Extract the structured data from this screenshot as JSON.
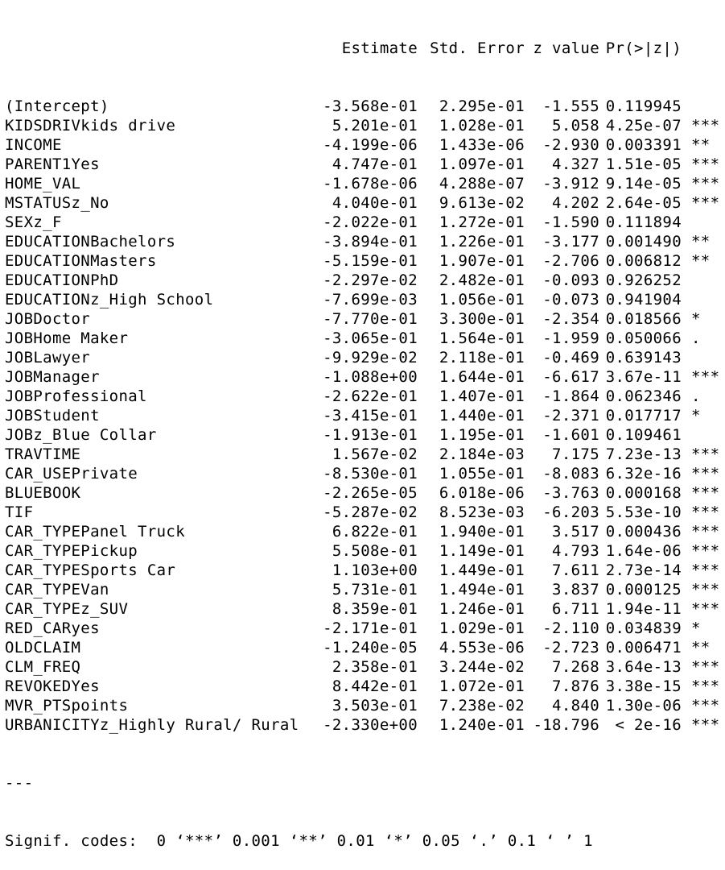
{
  "header": {
    "estimate": "Estimate",
    "std_error": "Std. Error",
    "z_value": "z value",
    "p_value": "Pr(>|z|)"
  },
  "rows": [
    {
      "term": "(Intercept)",
      "estimate": "-3.568e-01",
      "std_error": "2.295e-01",
      "z": "-1.555",
      "p": "0.119945",
      "sig": ""
    },
    {
      "term": "KIDSDRIVkids drive",
      "estimate": "5.201e-01",
      "std_error": "1.028e-01",
      "z": "5.058",
      "p": "4.25e-07",
      "sig": "***"
    },
    {
      "term": "INCOME",
      "estimate": "-4.199e-06",
      "std_error": "1.433e-06",
      "z": "-2.930",
      "p": "0.003391",
      "sig": "**"
    },
    {
      "term": "PARENT1Yes",
      "estimate": "4.747e-01",
      "std_error": "1.097e-01",
      "z": "4.327",
      "p": "1.51e-05",
      "sig": "***"
    },
    {
      "term": "HOME_VAL",
      "estimate": "-1.678e-06",
      "std_error": "4.288e-07",
      "z": "-3.912",
      "p": "9.14e-05",
      "sig": "***"
    },
    {
      "term": "MSTATUSz_No",
      "estimate": "4.040e-01",
      "std_error": "9.613e-02",
      "z": "4.202",
      "p": "2.64e-05",
      "sig": "***"
    },
    {
      "term": "SEXz_F",
      "estimate": "-2.022e-01",
      "std_error": "1.272e-01",
      "z": "-1.590",
      "p": "0.111894",
      "sig": ""
    },
    {
      "term": "EDUCATIONBachelors",
      "estimate": "-3.894e-01",
      "std_error": "1.226e-01",
      "z": "-3.177",
      "p": "0.001490",
      "sig": "**"
    },
    {
      "term": "EDUCATIONMasters",
      "estimate": "-5.159e-01",
      "std_error": "1.907e-01",
      "z": "-2.706",
      "p": "0.006812",
      "sig": "**"
    },
    {
      "term": "EDUCATIONPhD",
      "estimate": "-2.297e-02",
      "std_error": "2.482e-01",
      "z": "-0.093",
      "p": "0.926252",
      "sig": ""
    },
    {
      "term": "EDUCATIONz_High School",
      "estimate": "-7.699e-03",
      "std_error": "1.056e-01",
      "z": "-0.073",
      "p": "0.941904",
      "sig": ""
    },
    {
      "term": "JOBDoctor",
      "estimate": "-7.770e-01",
      "std_error": "3.300e-01",
      "z": "-2.354",
      "p": "0.018566",
      "sig": "*"
    },
    {
      "term": "JOBHome Maker",
      "estimate": "-3.065e-01",
      "std_error": "1.564e-01",
      "z": "-1.959",
      "p": "0.050066",
      "sig": "."
    },
    {
      "term": "JOBLawyer",
      "estimate": "-9.929e-02",
      "std_error": "2.118e-01",
      "z": "-0.469",
      "p": "0.639143",
      "sig": ""
    },
    {
      "term": "JOBManager",
      "estimate": "-1.088e+00",
      "std_error": "1.644e-01",
      "z": "-6.617",
      "p": "3.67e-11",
      "sig": "***"
    },
    {
      "term": "JOBProfessional",
      "estimate": "-2.622e-01",
      "std_error": "1.407e-01",
      "z": "-1.864",
      "p": "0.062346",
      "sig": "."
    },
    {
      "term": "JOBStudent",
      "estimate": "-3.415e-01",
      "std_error": "1.440e-01",
      "z": "-2.371",
      "p": "0.017717",
      "sig": "*"
    },
    {
      "term": "JOBz_Blue Collar",
      "estimate": "-1.913e-01",
      "std_error": "1.195e-01",
      "z": "-1.601",
      "p": "0.109461",
      "sig": ""
    },
    {
      "term": "TRAVTIME",
      "estimate": "1.567e-02",
      "std_error": "2.184e-03",
      "z": "7.175",
      "p": "7.23e-13",
      "sig": "***"
    },
    {
      "term": "CAR_USEPrivate",
      "estimate": "-8.530e-01",
      "std_error": "1.055e-01",
      "z": "-8.083",
      "p": "6.32e-16",
      "sig": "***"
    },
    {
      "term": "BLUEBOOK",
      "estimate": "-2.265e-05",
      "std_error": "6.018e-06",
      "z": "-3.763",
      "p": "0.000168",
      "sig": "***"
    },
    {
      "term": "TIF",
      "estimate": "-5.287e-02",
      "std_error": "8.523e-03",
      "z": "-6.203",
      "p": "5.53e-10",
      "sig": "***"
    },
    {
      "term": "CAR_TYPEPanel Truck",
      "estimate": "6.822e-01",
      "std_error": "1.940e-01",
      "z": "3.517",
      "p": "0.000436",
      "sig": "***"
    },
    {
      "term": "CAR_TYPEPickup",
      "estimate": "5.508e-01",
      "std_error": "1.149e-01",
      "z": "4.793",
      "p": "1.64e-06",
      "sig": "***"
    },
    {
      "term": "CAR_TYPESports Car",
      "estimate": "1.103e+00",
      "std_error": "1.449e-01",
      "z": "7.611",
      "p": "2.73e-14",
      "sig": "***"
    },
    {
      "term": "CAR_TYPEVan",
      "estimate": "5.731e-01",
      "std_error": "1.494e-01",
      "z": "3.837",
      "p": "0.000125",
      "sig": "***"
    },
    {
      "term": "CAR_TYPEz_SUV",
      "estimate": "8.359e-01",
      "std_error": "1.246e-01",
      "z": "6.711",
      "p": "1.94e-11",
      "sig": "***"
    },
    {
      "term": "RED_CARyes",
      "estimate": "-2.171e-01",
      "std_error": "1.029e-01",
      "z": "-2.110",
      "p": "0.034839",
      "sig": "*"
    },
    {
      "term": "OLDCLAIM",
      "estimate": "-1.240e-05",
      "std_error": "4.553e-06",
      "z": "-2.723",
      "p": "0.006471",
      "sig": "**"
    },
    {
      "term": "CLM_FREQ",
      "estimate": "2.358e-01",
      "std_error": "3.244e-02",
      "z": "7.268",
      "p": "3.64e-13",
      "sig": "***"
    },
    {
      "term": "REVOKEDYes",
      "estimate": "8.442e-01",
      "std_error": "1.072e-01",
      "z": "7.876",
      "p": "3.38e-15",
      "sig": "***"
    },
    {
      "term": "MVR_PTSpoints",
      "estimate": "3.503e-01",
      "std_error": "7.238e-02",
      "z": "4.840",
      "p": "1.30e-06",
      "sig": "***"
    },
    {
      "term": "URBANICITYz_Highly Rural/ Rural",
      "estimate": "-2.330e+00",
      "std_error": "1.240e-01",
      "z": "-18.796",
      "p": "< 2e-16",
      "sig": "***"
    }
  ],
  "separator": "---",
  "signif_codes": "Signif. codes:  0 ‘***’ 0.001 ‘**’ 0.01 ‘*’ 0.05 ‘.’ 0.1 ‘ ’ 1"
}
